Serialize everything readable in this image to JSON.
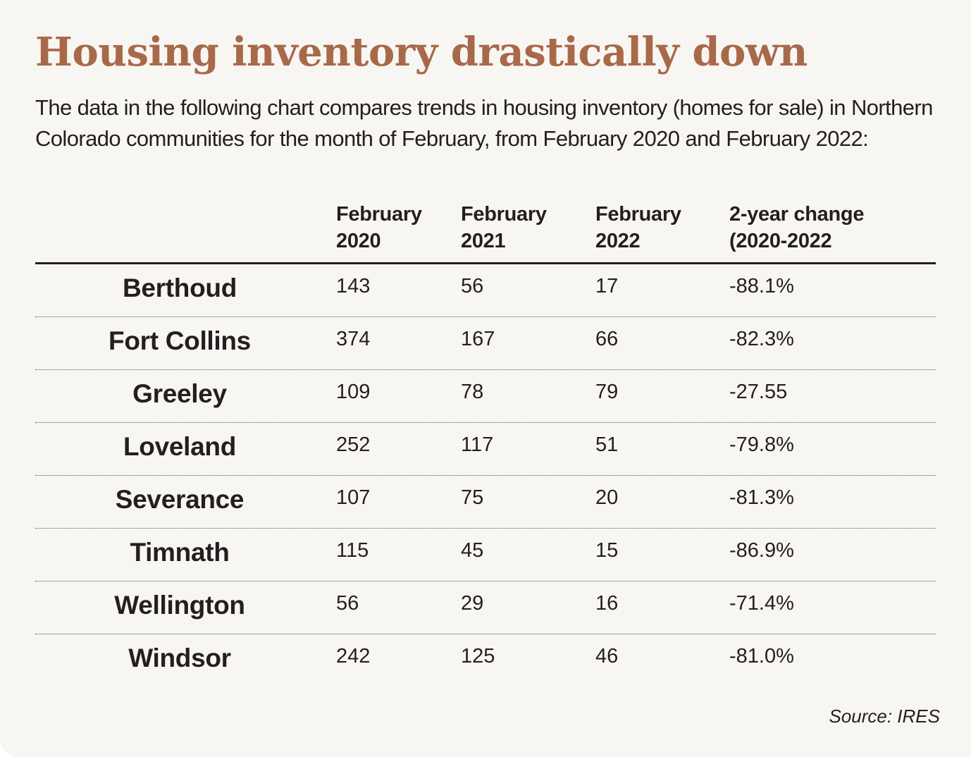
{
  "chart_data": {
    "type": "table",
    "title": "Housing inventory drastically down",
    "subtitle": "The data in the following chart compares trends in housing inventory (homes for sale) in Northern Colorado communities for the month of February, from February 2020 and February 2022:",
    "columns": [
      "",
      "February\n2020",
      "February\n2021",
      "February\n2022",
      "2-year change\n(2020-2022"
    ],
    "rows": [
      {
        "city": "Berthoud",
        "feb2020": "143",
        "feb2021": "56",
        "feb2022": "17",
        "change": "-88.1%"
      },
      {
        "city": "Fort Collins",
        "feb2020": "374",
        "feb2021": "167",
        "feb2022": "66",
        "change": "-82.3%"
      },
      {
        "city": "Greeley",
        "feb2020": "109",
        "feb2021": "78",
        "feb2022": "79",
        "change": "-27.55"
      },
      {
        "city": "Loveland",
        "feb2020": "252",
        "feb2021": "117",
        "feb2022": "51",
        "change": "-79.8%"
      },
      {
        "city": "Severance",
        "feb2020": "107",
        "feb2021": "75",
        "feb2022": "20",
        "change": "-81.3%"
      },
      {
        "city": "Timnath",
        "feb2020": "115",
        "feb2021": "45",
        "feb2022": "15",
        "change": "-86.9%"
      },
      {
        "city": "Wellington",
        "feb2020": "56",
        "feb2021": "29",
        "feb2022": "16",
        "change": "-71.4%"
      },
      {
        "city": "Windsor",
        "feb2020": "242",
        "feb2021": "125",
        "feb2022": "46",
        "change": "-81.0%"
      }
    ],
    "source": "Source: IRES"
  },
  "colors": {
    "title": "#a8694a",
    "text": "#231f20",
    "background": "#f8f6f2"
  }
}
